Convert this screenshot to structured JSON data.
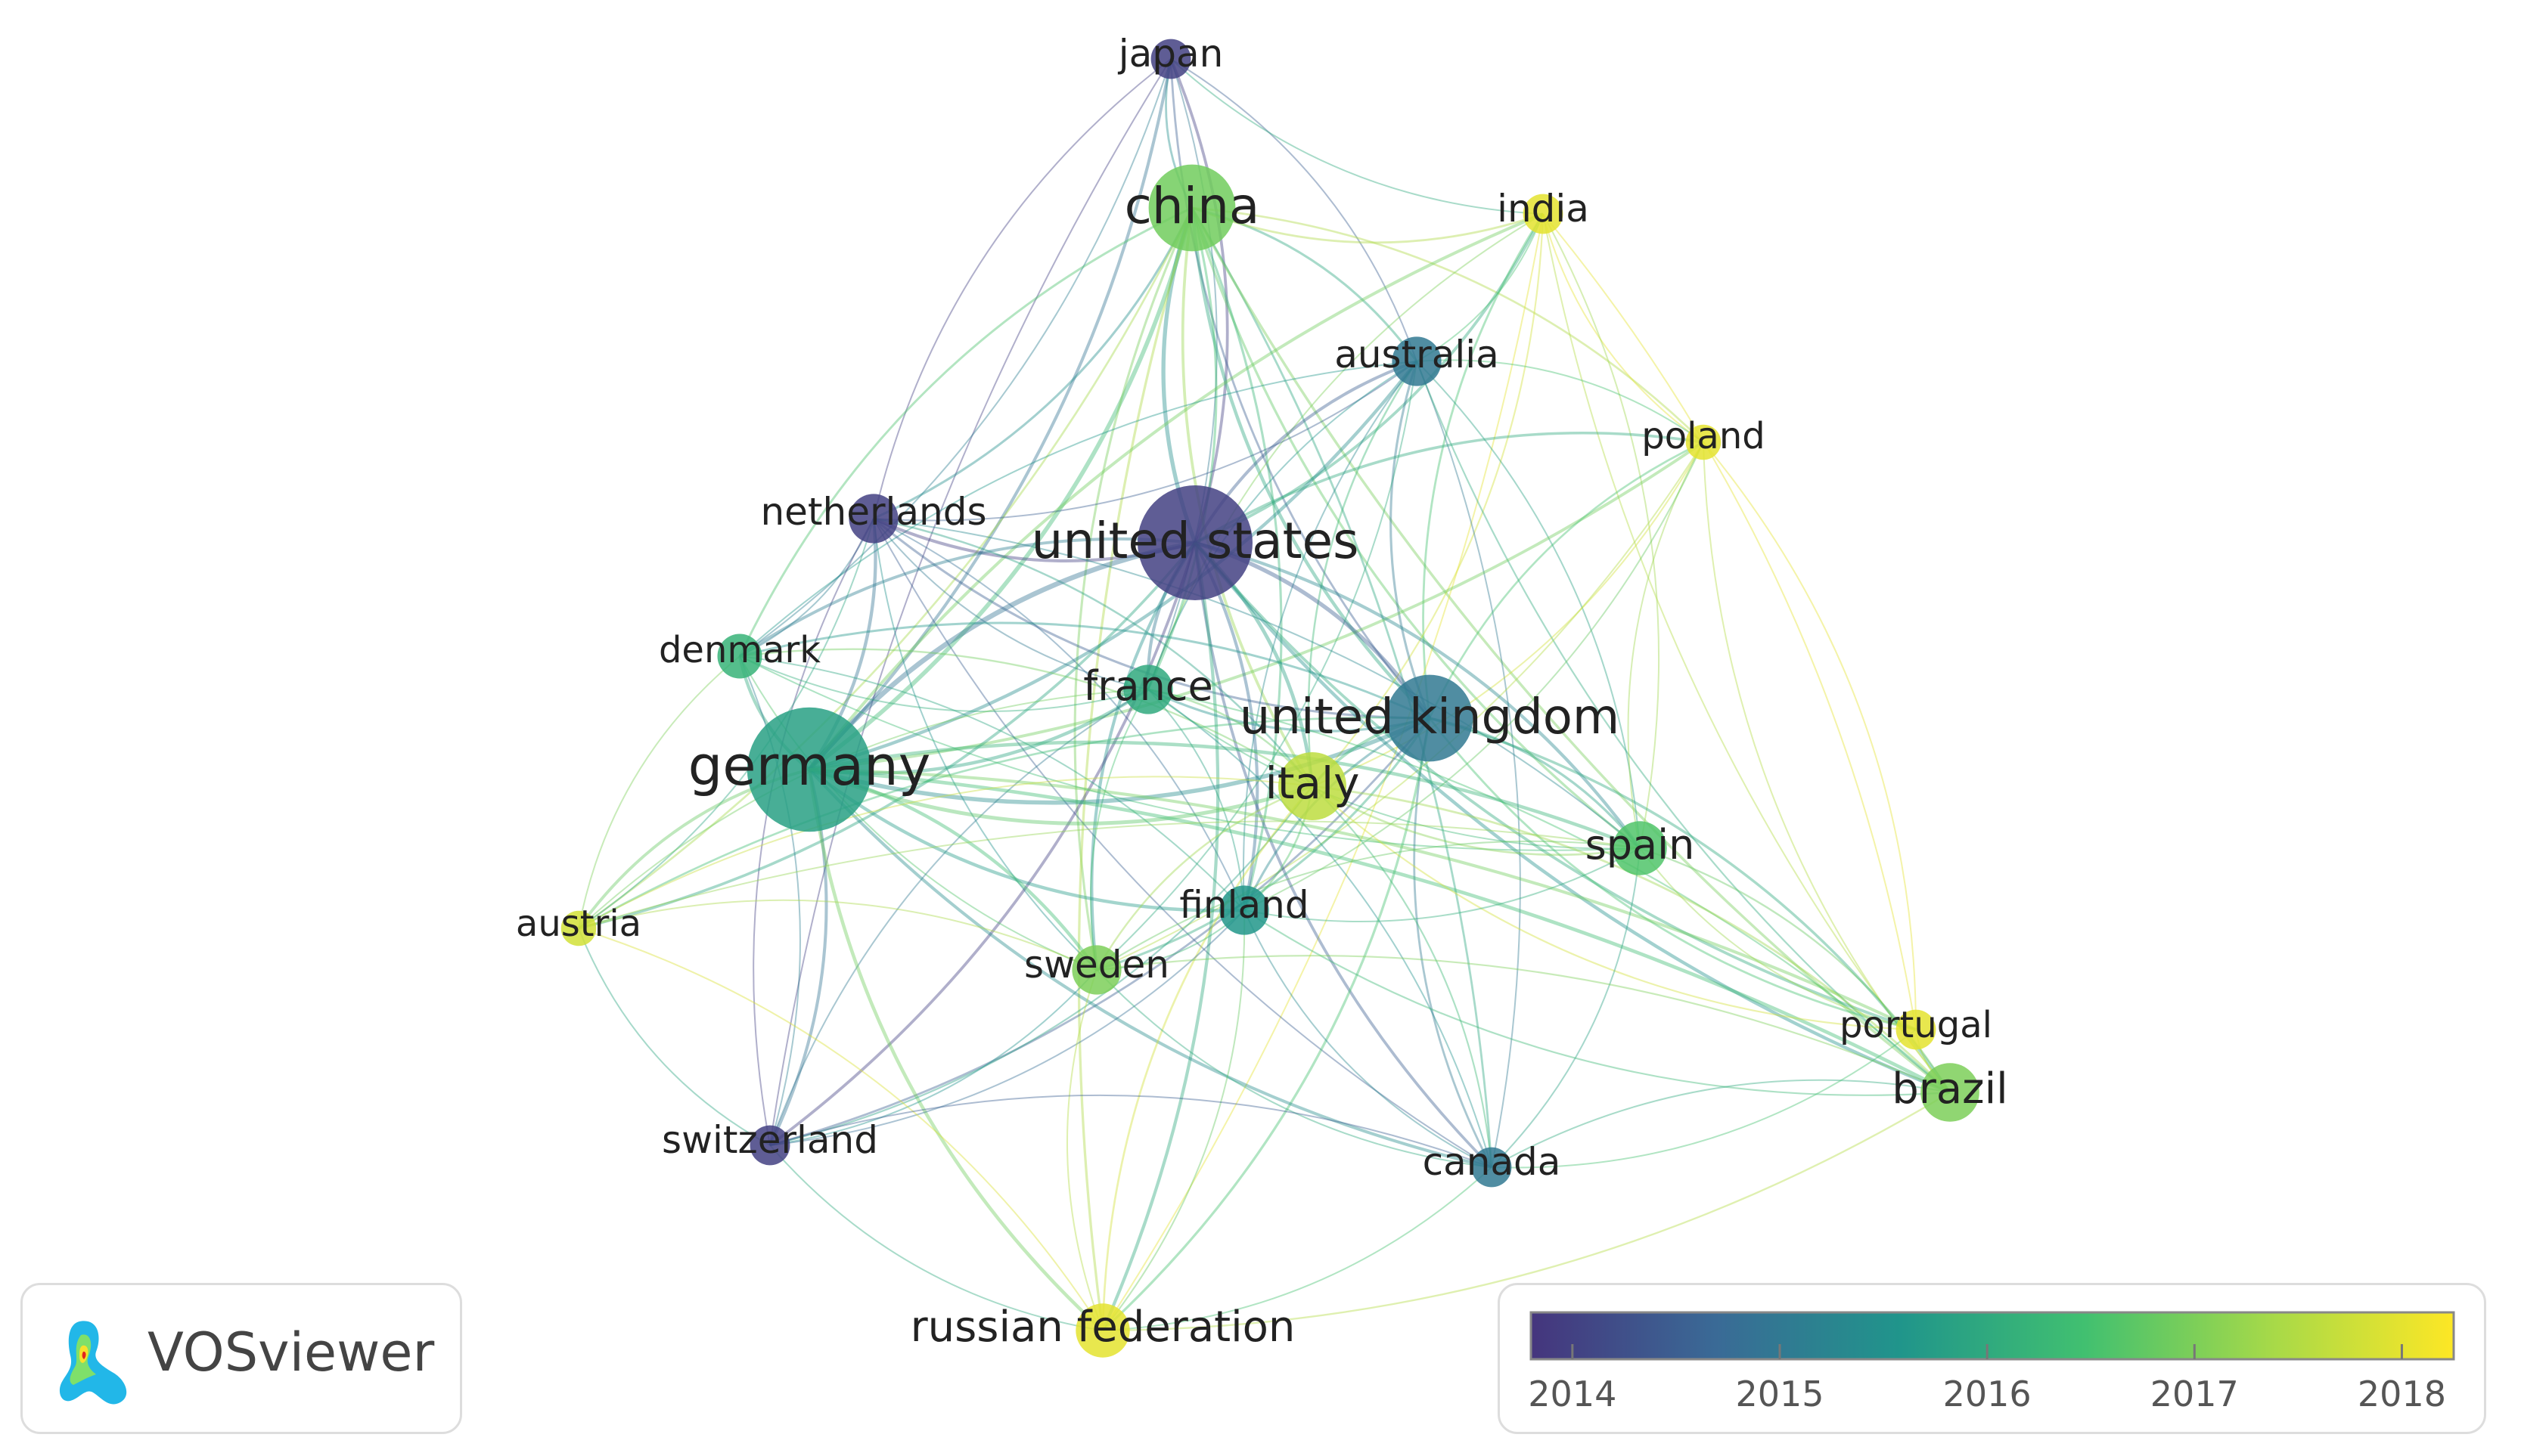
{
  "branding": {
    "name": "VOSviewer",
    "logo_icon": "vosviewer-logo-icon"
  },
  "legend": {
    "ticks": [
      "2014",
      "2015",
      "2016",
      "2017",
      "2018"
    ],
    "range": [
      2013.8,
      2018.25
    ],
    "gradient": [
      "#45357d",
      "#3a6a96",
      "#20958b",
      "#41c070",
      "#a5d949",
      "#fde725"
    ]
  },
  "nodes": [
    {
      "id": "japan",
      "label": "japan",
      "year": 2014.0,
      "weight": 2
    },
    {
      "id": "china",
      "label": "china",
      "year": 2016.9,
      "weight": 7
    },
    {
      "id": "india",
      "label": "india",
      "year": 2018.0,
      "weight": 2
    },
    {
      "id": "australia",
      "label": "australia",
      "year": 2015.0,
      "weight": 3
    },
    {
      "id": "poland",
      "label": "poland",
      "year": 2018.0,
      "weight": 1.5
    },
    {
      "id": "netherlands",
      "label": "netherlands",
      "year": 2014.0,
      "weight": 3
    },
    {
      "id": "united-states",
      "label": "united states",
      "year": 2014.0,
      "weight": 10
    },
    {
      "id": "denmark",
      "label": "denmark",
      "year": 2016.2,
      "weight": 2.5
    },
    {
      "id": "france",
      "label": "france",
      "year": 2016.0,
      "weight": 3
    },
    {
      "id": "united-kingdom",
      "label": "united kingdom",
      "year": 2015.0,
      "weight": 7
    },
    {
      "id": "germany",
      "label": "germany",
      "year": 2015.8,
      "weight": 11
    },
    {
      "id": "italy",
      "label": "italy",
      "year": 2017.6,
      "weight": 5
    },
    {
      "id": "spain",
      "label": "spain",
      "year": 2016.6,
      "weight": 3.5
    },
    {
      "id": "austria",
      "label": "austria",
      "year": 2017.8,
      "weight": 1.5
    },
    {
      "id": "finland",
      "label": "finland",
      "year": 2015.6,
      "weight": 3
    },
    {
      "id": "sweden",
      "label": "sweden",
      "year": 2017.0,
      "weight": 3
    },
    {
      "id": "portugal",
      "label": "portugal",
      "year": 2018.0,
      "weight": 2
    },
    {
      "id": "brazil",
      "label": "brazil",
      "year": 2017.0,
      "weight": 4
    },
    {
      "id": "switzerland",
      "label": "switzerland",
      "year": 2014.0,
      "weight": 2
    },
    {
      "id": "canada",
      "label": "canada",
      "year": 2015.0,
      "weight": 2
    },
    {
      "id": "russian-federation",
      "label": "russian federation",
      "year": 2018.0,
      "weight": 3.5
    }
  ],
  "links": [
    [
      "japan",
      "china"
    ],
    [
      "japan",
      "united-states"
    ],
    [
      "japan",
      "netherlands"
    ],
    [
      "japan",
      "germany"
    ],
    [
      "japan",
      "united-kingdom"
    ],
    [
      "japan",
      "australia"
    ],
    [
      "japan",
      "india"
    ],
    [
      "japan",
      "france"
    ],
    [
      "japan",
      "switzerland"
    ],
    [
      "japan",
      "denmark"
    ],
    [
      "china",
      "united-states"
    ],
    [
      "china",
      "germany"
    ],
    [
      "china",
      "united-kingdom"
    ],
    [
      "china",
      "australia"
    ],
    [
      "china",
      "india"
    ],
    [
      "china",
      "netherlands"
    ],
    [
      "china",
      "italy"
    ],
    [
      "china",
      "france"
    ],
    [
      "china",
      "spain"
    ],
    [
      "china",
      "finland"
    ],
    [
      "china",
      "sweden"
    ],
    [
      "china",
      "canada"
    ],
    [
      "china",
      "denmark"
    ],
    [
      "china",
      "poland"
    ],
    [
      "china",
      "brazil"
    ],
    [
      "china",
      "austria"
    ],
    [
      "china",
      "russian-federation"
    ],
    [
      "india",
      "united-states"
    ],
    [
      "india",
      "united-kingdom"
    ],
    [
      "india",
      "australia"
    ],
    [
      "india",
      "germany"
    ],
    [
      "india",
      "italy"
    ],
    [
      "india",
      "poland"
    ],
    [
      "india",
      "spain"
    ],
    [
      "india",
      "brazil"
    ],
    [
      "india",
      "portugal"
    ],
    [
      "india",
      "france"
    ],
    [
      "india",
      "russian-federation"
    ],
    [
      "australia",
      "united-states"
    ],
    [
      "australia",
      "germany"
    ],
    [
      "australia",
      "united-kingdom"
    ],
    [
      "australia",
      "netherlands"
    ],
    [
      "australia",
      "italy"
    ],
    [
      "australia",
      "canada"
    ],
    [
      "australia",
      "finland"
    ],
    [
      "australia",
      "spain"
    ],
    [
      "australia",
      "france"
    ],
    [
      "australia",
      "sweden"
    ],
    [
      "australia",
      "denmark"
    ],
    [
      "australia",
      "poland"
    ],
    [
      "australia",
      "brazil"
    ],
    [
      "poland",
      "germany"
    ],
    [
      "poland",
      "united-kingdom"
    ],
    [
      "poland",
      "italy"
    ],
    [
      "poland",
      "spain"
    ],
    [
      "poland",
      "portugal"
    ],
    [
      "poland",
      "united-states"
    ],
    [
      "poland",
      "finland"
    ],
    [
      "poland",
      "brazil"
    ],
    [
      "poland",
      "sweden"
    ],
    [
      "netherlands",
      "united-states"
    ],
    [
      "netherlands",
      "germany"
    ],
    [
      "netherlands",
      "united-kingdom"
    ],
    [
      "netherlands",
      "denmark"
    ],
    [
      "netherlands",
      "france"
    ],
    [
      "netherlands",
      "italy"
    ],
    [
      "netherlands",
      "sweden"
    ],
    [
      "netherlands",
      "finland"
    ],
    [
      "netherlands",
      "switzerland"
    ],
    [
      "netherlands",
      "spain"
    ],
    [
      "netherlands",
      "canada"
    ],
    [
      "netherlands",
      "austria"
    ],
    [
      "united-states",
      "germany"
    ],
    [
      "united-states",
      "united-kingdom"
    ],
    [
      "united-states",
      "france"
    ],
    [
      "united-states",
      "italy"
    ],
    [
      "united-states",
      "denmark"
    ],
    [
      "united-states",
      "finland"
    ],
    [
      "united-states",
      "sweden"
    ],
    [
      "united-states",
      "spain"
    ],
    [
      "united-states",
      "canada"
    ],
    [
      "united-states",
      "switzerland"
    ],
    [
      "united-states",
      "brazil"
    ],
    [
      "united-states",
      "austria"
    ],
    [
      "united-states",
      "portugal"
    ],
    [
      "united-states",
      "russian-federation"
    ],
    [
      "denmark",
      "germany"
    ],
    [
      "denmark",
      "united-kingdom"
    ],
    [
      "denmark",
      "france"
    ],
    [
      "denmark",
      "italy"
    ],
    [
      "denmark",
      "sweden"
    ],
    [
      "denmark",
      "finland"
    ],
    [
      "denmark",
      "austria"
    ],
    [
      "denmark",
      "switzerland"
    ],
    [
      "denmark",
      "spain"
    ],
    [
      "france",
      "germany"
    ],
    [
      "france",
      "united-kingdom"
    ],
    [
      "france",
      "italy"
    ],
    [
      "france",
      "spain"
    ],
    [
      "france",
      "finland"
    ],
    [
      "france",
      "sweden"
    ],
    [
      "france",
      "canada"
    ],
    [
      "france",
      "switzerland"
    ],
    [
      "france",
      "brazil"
    ],
    [
      "france",
      "austria"
    ],
    [
      "united-kingdom",
      "germany"
    ],
    [
      "united-kingdom",
      "italy"
    ],
    [
      "united-kingdom",
      "spain"
    ],
    [
      "united-kingdom",
      "finland"
    ],
    [
      "united-kingdom",
      "sweden"
    ],
    [
      "united-kingdom",
      "canada"
    ],
    [
      "united-kingdom",
      "brazil"
    ],
    [
      "united-kingdom",
      "portugal"
    ],
    [
      "united-kingdom",
      "switzerland"
    ],
    [
      "united-kingdom",
      "austria"
    ],
    [
      "united-kingdom",
      "russian-federation"
    ],
    [
      "germany",
      "italy"
    ],
    [
      "germany",
      "spain"
    ],
    [
      "germany",
      "finland"
    ],
    [
      "germany",
      "sweden"
    ],
    [
      "germany",
      "austria"
    ],
    [
      "germany",
      "switzerland"
    ],
    [
      "germany",
      "canada"
    ],
    [
      "germany",
      "brazil"
    ],
    [
      "germany",
      "russian-federation"
    ],
    [
      "germany",
      "portugal"
    ],
    [
      "italy",
      "spain"
    ],
    [
      "italy",
      "finland"
    ],
    [
      "italy",
      "sweden"
    ],
    [
      "italy",
      "brazil"
    ],
    [
      "italy",
      "portugal"
    ],
    [
      "italy",
      "canada"
    ],
    [
      "italy",
      "austria"
    ],
    [
      "italy",
      "switzerland"
    ],
    [
      "italy",
      "russian-federation"
    ],
    [
      "spain",
      "brazil"
    ],
    [
      "spain",
      "portugal"
    ],
    [
      "spain",
      "finland"
    ],
    [
      "spain",
      "sweden"
    ],
    [
      "spain",
      "canada"
    ],
    [
      "spain",
      "austria"
    ],
    [
      "finland",
      "sweden"
    ],
    [
      "finland",
      "canada"
    ],
    [
      "finland",
      "russian-federation"
    ],
    [
      "finland",
      "brazil"
    ],
    [
      "finland",
      "switzerland"
    ],
    [
      "sweden",
      "austria"
    ],
    [
      "sweden",
      "switzerland"
    ],
    [
      "sweden",
      "russian-federation"
    ],
    [
      "sweden",
      "brazil"
    ],
    [
      "sweden",
      "canada"
    ],
    [
      "brazil",
      "portugal"
    ],
    [
      "brazil",
      "canada"
    ],
    [
      "portugal",
      "canada"
    ],
    [
      "austria",
      "switzerland"
    ],
    [
      "austria",
      "russian-federation"
    ],
    [
      "switzerland",
      "russian-federation"
    ],
    [
      "canada",
      "russian-federation"
    ],
    [
      "canada",
      "switzerland"
    ],
    [
      "brazil",
      "russian-federation"
    ]
  ]
}
